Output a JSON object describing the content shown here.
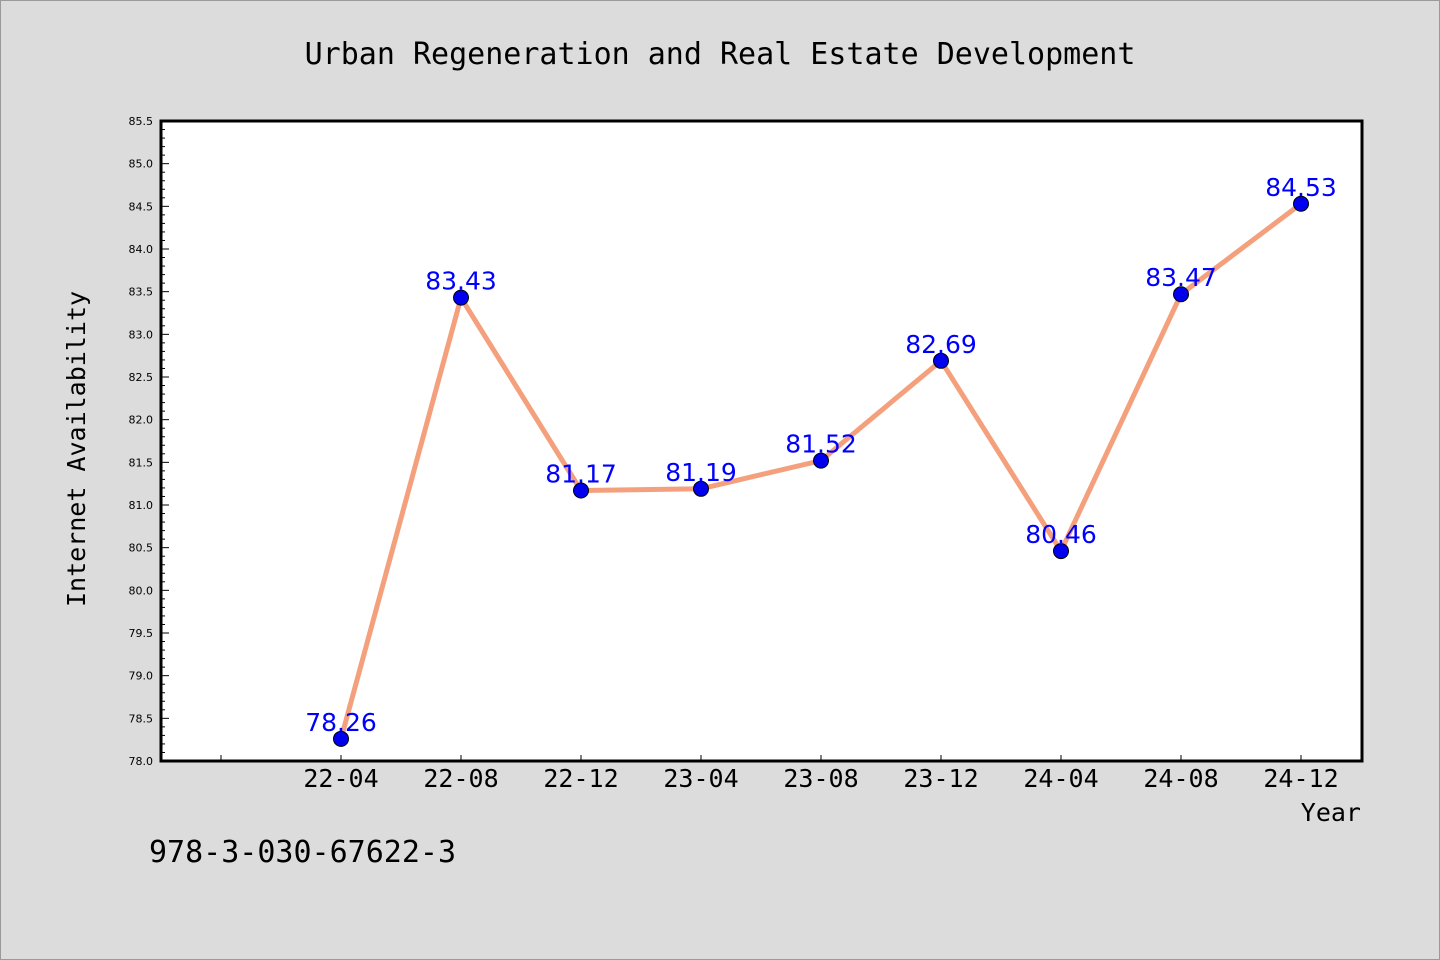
{
  "chart_data": {
    "type": "line",
    "title": "Urban Regeneration and Real Estate Development",
    "xlabel": "Year",
    "ylabel": "Internet Availability",
    "categories": [
      "22-04",
      "22-08",
      "22-12",
      "23-04",
      "23-08",
      "23-12",
      "24-04",
      "24-08",
      "24-12"
    ],
    "series": [
      {
        "values": [
          78.26,
          83.43,
          81.17,
          81.19,
          81.52,
          82.69,
          80.46,
          83.47,
          84.53
        ]
      }
    ],
    "data_labels": [
      "78.26",
      "83.43",
      "81.17",
      "81.19",
      "81.52",
      "82.69",
      "80.46",
      "83.47",
      "84.53"
    ],
    "ylim": [
      78.0,
      85.5
    ],
    "yticks": [
      "78.0",
      "78.5",
      "79.0",
      "79.5",
      "80.0",
      "80.5",
      "81.0",
      "81.5",
      "82.0",
      "82.5",
      "83.0",
      "83.5",
      "84.0",
      "84.5",
      "85.0",
      "85.5"
    ],
    "grid": false,
    "legend": "none",
    "colors": {
      "line": "#f4a07c",
      "marker": "#0000ee",
      "data_label": "#0000ff",
      "background": "#dcdcdc",
      "plot_area": "#ffffff"
    }
  },
  "annotation": "978-3-030-67622-3"
}
